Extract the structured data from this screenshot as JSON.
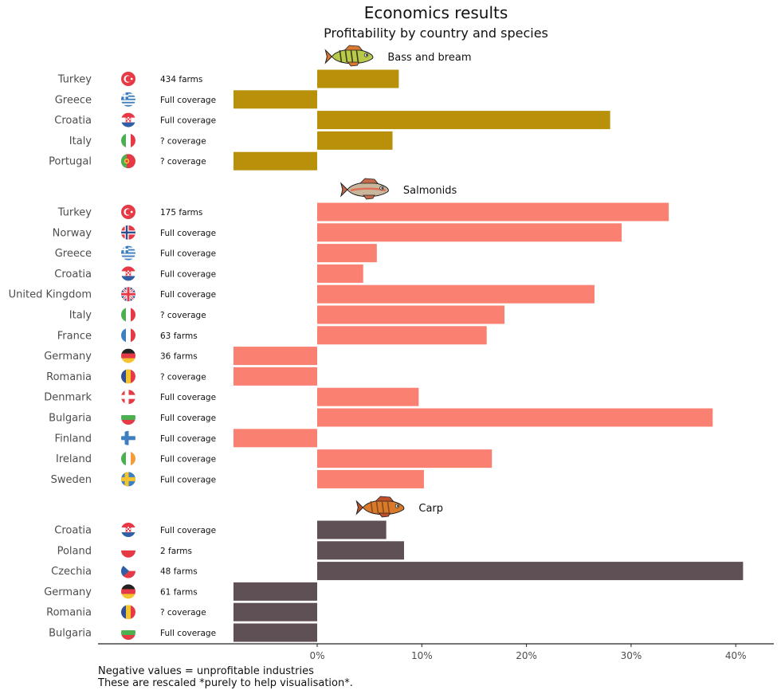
{
  "chart_data": {
    "type": "bar",
    "orientation": "horizontal",
    "title": "Economics results",
    "subtitle": "Profitability by country and species",
    "xlim": [
      -8,
      43
    ],
    "x_ticks": [
      "0%",
      "10%",
      "20%",
      "30%",
      "40%"
    ],
    "x_tick_values": [
      0,
      10,
      20,
      30,
      40
    ],
    "footnote": [
      "Negative values = unprofitable industries",
      "These are rescaled *purely to help visualisation*."
    ],
    "groups": [
      {
        "name": "Bass and bream",
        "icon": "bass-fish-icon",
        "color": "#B8900A",
        "rows": [
          {
            "country": "Turkey",
            "flag": "turkey-flag-icon",
            "coverage": "434 farms",
            "value": 7.8
          },
          {
            "country": "Greece",
            "flag": "greece-flag-icon",
            "coverage": "Full coverage",
            "value": -8.0
          },
          {
            "country": "Croatia",
            "flag": "croatia-flag-icon",
            "coverage": "Full coverage",
            "value": 28.0
          },
          {
            "country": "Italy",
            "flag": "italy-flag-icon",
            "coverage": "? coverage",
            "value": 7.2
          },
          {
            "country": "Portugal",
            "flag": "portugal-flag-icon",
            "coverage": "? coverage",
            "value": -8.0
          }
        ]
      },
      {
        "name": "Salmonids",
        "icon": "trout-fish-icon",
        "color": "#FA8072",
        "rows": [
          {
            "country": "Turkey",
            "flag": "turkey-flag-icon",
            "coverage": "175 farms",
            "value": 33.6
          },
          {
            "country": "Norway",
            "flag": "norway-flag-icon",
            "coverage": "Full coverage",
            "value": 29.1
          },
          {
            "country": "Greece",
            "flag": "greece-flag-icon",
            "coverage": "Full coverage",
            "value": 5.7
          },
          {
            "country": "Croatia",
            "flag": "croatia-flag-icon",
            "coverage": "Full coverage",
            "value": 4.4
          },
          {
            "country": "United Kingdom",
            "flag": "uk-flag-icon",
            "coverage": "Full coverage",
            "value": 26.5
          },
          {
            "country": "Italy",
            "flag": "italy-flag-icon",
            "coverage": "? coverage",
            "value": 17.9
          },
          {
            "country": "France",
            "flag": "france-flag-icon",
            "coverage": "63 farms",
            "value": 16.2
          },
          {
            "country": "Germany",
            "flag": "germany-flag-icon",
            "coverage": "36 farms",
            "value": -8.0
          },
          {
            "country": "Romania",
            "flag": "romania-flag-icon",
            "coverage": "? coverage",
            "value": -8.0
          },
          {
            "country": "Denmark",
            "flag": "denmark-flag-icon",
            "coverage": "Full coverage",
            "value": 9.7
          },
          {
            "country": "Bulgaria",
            "flag": "bulgaria-flag-icon",
            "coverage": "Full coverage",
            "value": 37.8
          },
          {
            "country": "Finland",
            "flag": "finland-flag-icon",
            "coverage": "Full coverage",
            "value": -8.0
          },
          {
            "country": "Ireland",
            "flag": "ireland-flag-icon",
            "coverage": "Full coverage",
            "value": 16.7
          },
          {
            "country": "Sweden",
            "flag": "sweden-flag-icon",
            "coverage": "Full coverage",
            "value": 10.2
          }
        ]
      },
      {
        "name": "Carp",
        "icon": "carp-fish-icon",
        "color": "#5E5055",
        "rows": [
          {
            "country": "Croatia",
            "flag": "croatia-flag-icon",
            "coverage": "Full coverage",
            "value": 6.6
          },
          {
            "country": "Poland",
            "flag": "poland-flag-icon",
            "coverage": "2 farms",
            "value": 8.3
          },
          {
            "country": "Czechia",
            "flag": "czechia-flag-icon",
            "coverage": "48 farms",
            "value": 40.7
          },
          {
            "country": "Germany",
            "flag": "germany-flag-icon",
            "coverage": "61 farms",
            "value": -8.0
          },
          {
            "country": "Romania",
            "flag": "romania-flag-icon",
            "coverage": "? coverage",
            "value": -8.0
          },
          {
            "country": "Bulgaria",
            "flag": "bulgaria-flag-icon",
            "coverage": "Full coverage",
            "value": -8.0
          }
        ]
      }
    ]
  }
}
